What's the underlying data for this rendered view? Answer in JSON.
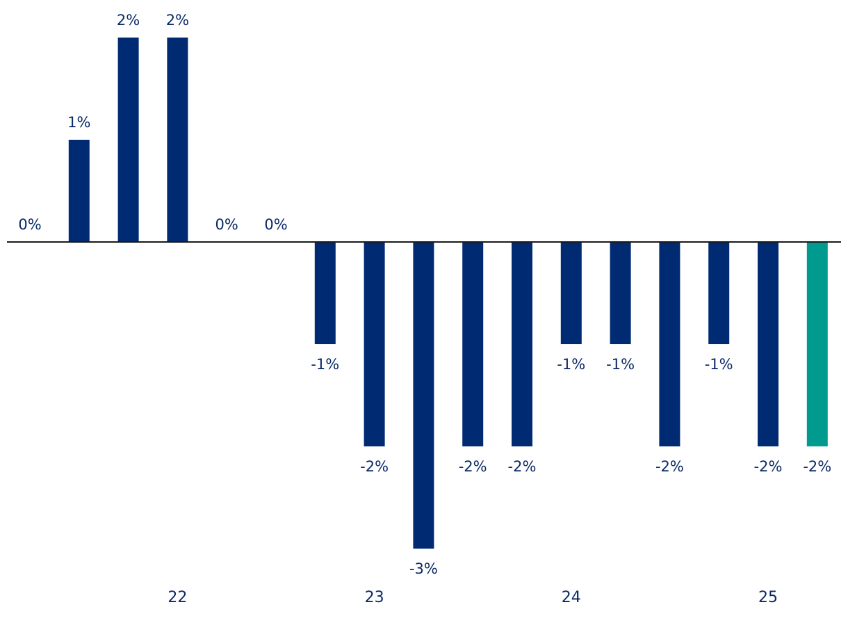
{
  "chart_data": {
    "type": "bar",
    "categories": [
      "",
      "",
      "",
      "",
      "",
      "",
      "",
      "",
      "",
      "",
      "",
      "",
      "",
      "",
      "",
      "",
      ""
    ],
    "values": [
      0,
      1,
      2,
      2,
      0,
      0,
      -1,
      -2,
      -3,
      -2,
      -2,
      -1,
      -1,
      -2,
      -1,
      -2,
      -2
    ],
    "data_labels": [
      "0%",
      "1%",
      "2%",
      "2%",
      "0%",
      "0%",
      "-1%",
      "-2%",
      "-3%",
      "-2%",
      "-2%",
      "-1%",
      "-1%",
      "-2%",
      "-1%",
      "-2%",
      "-2%"
    ],
    "x_axis_labels": [
      {
        "label": "22",
        "bar_index": 3
      },
      {
        "label": "23",
        "bar_index": 7
      },
      {
        "label": "24",
        "bar_index": 11
      },
      {
        "label": "25",
        "bar_index": 15
      }
    ],
    "highlight_index": 16,
    "ylim": [
      -3,
      2
    ],
    "title": "",
    "xlabel": "",
    "ylabel": "",
    "grid": false,
    "colors": {
      "bar": "#002b73",
      "highlight": "#009a8e",
      "axis": "#1a1a1a",
      "text": "#0a2a66"
    }
  }
}
